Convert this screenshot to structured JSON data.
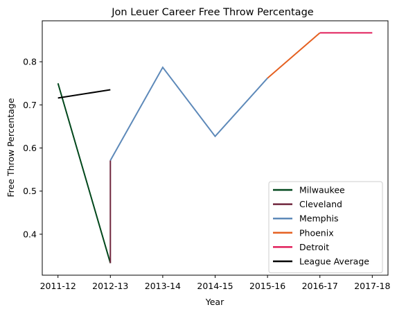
{
  "chart_data": {
    "type": "line",
    "title": "Jon Leuer Career Free Throw Percentage",
    "xlabel": "Year",
    "ylabel": "Free Throw Percentage",
    "categories": [
      "2011-12",
      "2012-13",
      "2013-14",
      "2014-15",
      "2015-16",
      "2016-17",
      "2017-18"
    ],
    "ylim": [
      0.305,
      0.895
    ],
    "yticks": [
      0.4,
      0.5,
      0.6,
      0.7,
      0.8
    ],
    "ytick_labels": [
      "0.4",
      "0.5",
      "0.6",
      "0.7",
      "0.8"
    ],
    "grid": false,
    "legend_position": "lower-right",
    "series": [
      {
        "name": "Milwaukee",
        "color": "#00471b",
        "points": [
          [
            "2011-12",
            0.75
          ],
          [
            "2012-13",
            0.333
          ]
        ]
      },
      {
        "name": "Cleveland",
        "color": "#6f263d",
        "points": [
          [
            "2012-13",
            0.333
          ],
          [
            "2012-13",
            0.571
          ]
        ]
      },
      {
        "name": "Memphis",
        "color": "#5d89b9",
        "points": [
          [
            "2012-13",
            0.571
          ],
          [
            "2013-14",
            0.787
          ],
          [
            "2014-15",
            0.627
          ],
          [
            "2015-16",
            0.762
          ]
        ]
      },
      {
        "name": "Phoenix",
        "color": "#e56020",
        "points": [
          [
            "2015-16",
            0.762
          ],
          [
            "2016-17",
            0.867
          ]
        ]
      },
      {
        "name": "Detroit",
        "color": "#e01e5a",
        "points": [
          [
            "2016-17",
            0.867
          ],
          [
            "2017-18",
            0.867
          ]
        ]
      },
      {
        "name": "League Average",
        "color": "#000000",
        "points": [
          [
            "2011-12",
            0.716
          ],
          [
            "2012-13",
            0.735
          ]
        ]
      }
    ]
  }
}
